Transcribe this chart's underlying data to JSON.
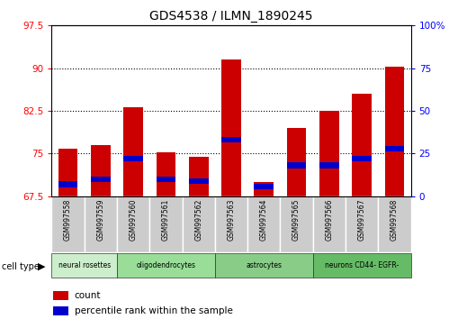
{
  "title": "GDS4538 / ILMN_1890245",
  "samples": [
    "GSM997558",
    "GSM997559",
    "GSM997560",
    "GSM997561",
    "GSM997562",
    "GSM997563",
    "GSM997564",
    "GSM997565",
    "GSM997566",
    "GSM997567",
    "GSM997568"
  ],
  "count_values": [
    75.8,
    76.5,
    83.2,
    75.2,
    74.5,
    91.5,
    70.0,
    79.5,
    82.5,
    85.5,
    90.2
  ],
  "percentile_values": [
    7.0,
    10.0,
    22.0,
    10.0,
    9.0,
    33.0,
    5.5,
    18.0,
    18.0,
    22.0,
    28.0
  ],
  "y_min": 67.5,
  "y_max": 97.5,
  "y_ticks_left": [
    67.5,
    75.0,
    82.5,
    90.0,
    97.5
  ],
  "y_ticks_right": [
    0,
    25,
    50,
    75,
    100
  ],
  "bar_color": "#cc0000",
  "pct_color": "#0000cc",
  "bar_width": 0.6,
  "cell_type_groups": [
    {
      "label": "neural rosettes",
      "samples": [
        "GSM997558",
        "GSM997559"
      ],
      "color": "#cceecc"
    },
    {
      "label": "oligodendrocytes",
      "samples": [
        "GSM997560",
        "GSM997561",
        "GSM997562"
      ],
      "color": "#99dd99"
    },
    {
      "label": "astrocytes",
      "samples": [
        "GSM997563",
        "GSM997564",
        "GSM997565"
      ],
      "color": "#88cc88"
    },
    {
      "label": "neurons CD44- EGFR-",
      "samples": [
        "GSM997566",
        "GSM997567",
        "GSM997568"
      ],
      "color": "#66bb66"
    }
  ],
  "cell_type_label": "cell type",
  "legend_count": "count",
  "legend_pct": "percentile rank within the sample",
  "grid_lines": [
    75.0,
    82.5,
    90.0
  ]
}
